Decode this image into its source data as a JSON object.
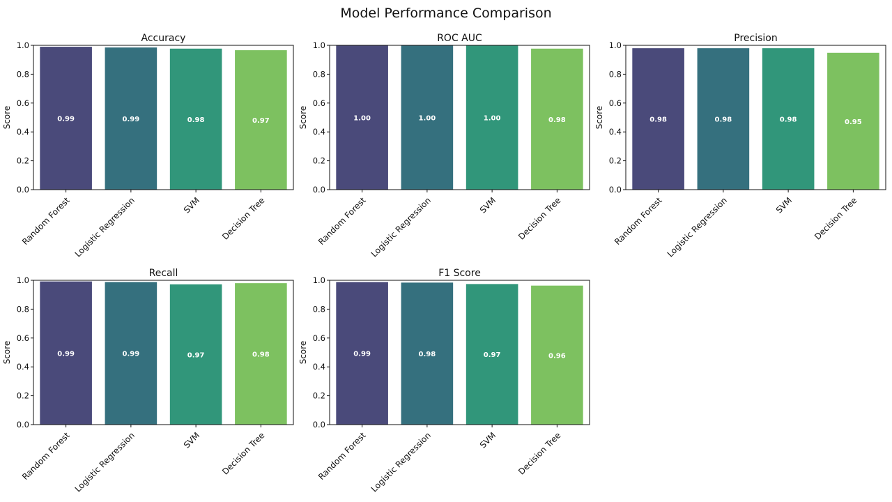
{
  "figure_title": "Model Performance Comparison",
  "colors": [
    "#4a4a7a",
    "#35707e",
    "#31967a",
    "#7dc160"
  ],
  "chart_data": [
    {
      "type": "bar",
      "title": "Accuracy",
      "xlabel": "",
      "ylabel": "Score",
      "ylim": [
        0,
        1.0
      ],
      "yticks": [
        "0.0",
        "0.2",
        "0.4",
        "0.6",
        "0.8",
        "1.0"
      ],
      "categories": [
        "Random Forest",
        "Logistic Regression",
        "SVM",
        "Decision Tree"
      ],
      "values": [
        0.99,
        0.985,
        0.977,
        0.966
      ],
      "data_labels": [
        "0.99",
        "0.99",
        "0.98",
        "0.97"
      ]
    },
    {
      "type": "bar",
      "title": "ROC AUC",
      "xlabel": "",
      "ylabel": "Score",
      "ylim": [
        0,
        1.0
      ],
      "yticks": [
        "0.0",
        "0.2",
        "0.4",
        "0.6",
        "0.8",
        "1.0"
      ],
      "categories": [
        "Random Forest",
        "Logistic Regression",
        "SVM",
        "Decision Tree"
      ],
      "values": [
        0.999,
        0.999,
        0.998,
        0.977
      ],
      "data_labels": [
        "1.00",
        "1.00",
        "1.00",
        "0.98"
      ]
    },
    {
      "type": "bar",
      "title": "Precision",
      "xlabel": "",
      "ylabel": "Score",
      "ylim": [
        0,
        1.0
      ],
      "yticks": [
        "0.0",
        "0.2",
        "0.4",
        "0.6",
        "0.8",
        "1.0"
      ],
      "categories": [
        "Random Forest",
        "Logistic Regression",
        "SVM",
        "Decision Tree"
      ],
      "values": [
        0.98,
        0.98,
        0.98,
        0.948
      ],
      "data_labels": [
        "0.98",
        "0.98",
        "0.98",
        "0.95"
      ]
    },
    {
      "type": "bar",
      "title": "Recall",
      "xlabel": "",
      "ylabel": "Score",
      "ylim": [
        0,
        1.0
      ],
      "yticks": [
        "0.0",
        "0.2",
        "0.4",
        "0.6",
        "0.8",
        "1.0"
      ],
      "categories": [
        "Random Forest",
        "Logistic Regression",
        "SVM",
        "Decision Tree"
      ],
      "values": [
        0.992,
        0.988,
        0.972,
        0.98
      ],
      "data_labels": [
        "0.99",
        "0.99",
        "0.97",
        "0.98"
      ]
    },
    {
      "type": "bar",
      "title": "F1 Score",
      "xlabel": "",
      "ylabel": "Score",
      "ylim": [
        0,
        1.0
      ],
      "yticks": [
        "0.0",
        "0.2",
        "0.4",
        "0.6",
        "0.8",
        "1.0"
      ],
      "categories": [
        "Random Forest",
        "Logistic Regression",
        "SVM",
        "Decision Tree"
      ],
      "values": [
        0.988,
        0.984,
        0.974,
        0.963
      ],
      "data_labels": [
        "0.99",
        "0.98",
        "0.97",
        "0.96"
      ]
    }
  ]
}
